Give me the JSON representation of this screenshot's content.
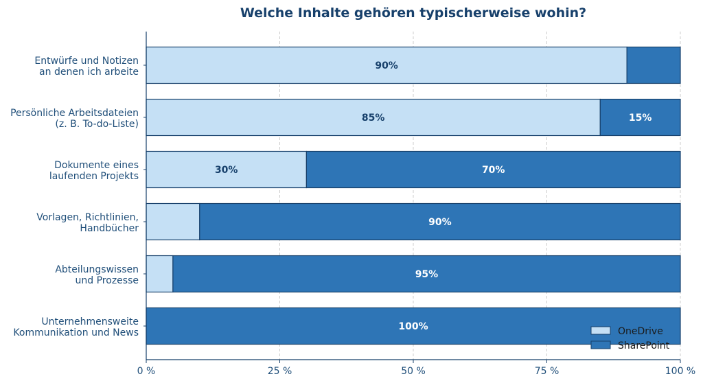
{
  "chart_data": {
    "type": "bar",
    "orientation": "horizontal",
    "stacked": true,
    "title": "Welche Inhalte gehören typischerweise wohin?",
    "xlabel": "",
    "ylabel": "",
    "xlim": [
      0,
      100
    ],
    "xticks": [
      0,
      25,
      50,
      75,
      100
    ],
    "xtick_labels": [
      "0 %",
      "25 %",
      "50 %",
      "75 %",
      "100 %"
    ],
    "grid": "vertical dashed",
    "legend_position": "bottom-right",
    "categories": [
      [
        "Entwürfe und Notizen",
        "an denen ich arbeite"
      ],
      [
        "Persönliche Arbeitsdateien",
        "(z. B. To-do-Liste)"
      ],
      [
        "Dokumente eines",
        "laufenden Projekts"
      ],
      [
        "Vorlagen, Richtlinien,",
        "Handbücher"
      ],
      [
        "Abteilungswissen",
        "und Prozesse"
      ],
      [
        "Unternehmensweite",
        "Kommunikation und News"
      ]
    ],
    "series": [
      {
        "name": "OneDrive",
        "color": "#c5e0f5",
        "label_color": "#17406b",
        "values": [
          90,
          85,
          30,
          10,
          5,
          0
        ],
        "labels": [
          "90%",
          "85%",
          "30%",
          "",
          "",
          ""
        ]
      },
      {
        "name": "SharePoint",
        "color": "#2e75b6",
        "label_color": "#ffffff",
        "values": [
          10,
          15,
          70,
          90,
          95,
          100
        ],
        "labels": [
          "",
          "15%",
          "70%",
          "90%",
          "95%",
          "100%"
        ]
      }
    ]
  }
}
